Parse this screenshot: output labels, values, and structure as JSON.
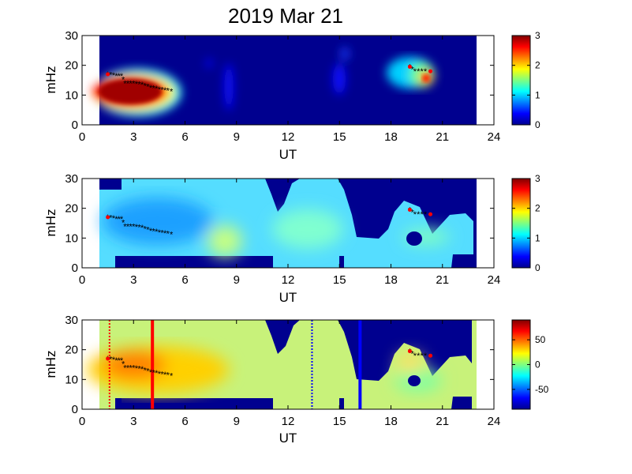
{
  "title": "2019 Mar 21",
  "chart_data": [
    {
      "type": "heatmap",
      "panel": "top",
      "xlabel": "UT",
      "ylabel": "mHz",
      "xlim": [
        0,
        24
      ],
      "ylim": [
        0,
        30
      ],
      "xticks": [
        0,
        3,
        6,
        9,
        12,
        15,
        18,
        21,
        24
      ],
      "yticks": [
        0,
        10,
        20,
        30
      ],
      "colorbar": {
        "range": [
          0,
          3
        ],
        "ticks": [
          0,
          1,
          2,
          3
        ],
        "colormap": "jet"
      },
      "data_extent_ut": [
        1.0,
        23.0
      ],
      "background_value": 0,
      "features": [
        {
          "name": "morning-peak",
          "ut_range": [
            1.0,
            6.0
          ],
          "freq_range": [
            7,
            19
          ],
          "peak_value": 3
        },
        {
          "name": "evening-peak",
          "ut_range": [
            18.0,
            21.0
          ],
          "freq_range": [
            10,
            24
          ],
          "peak_value": 2.6
        }
      ],
      "peak_track": [
        {
          "ut": 1.5,
          "freq": 17
        },
        {
          "ut": 2.0,
          "freq": 16.5
        },
        {
          "ut": 2.3,
          "freq": 16.5
        },
        {
          "ut": 2.5,
          "freq": 14
        },
        {
          "ut": 3.0,
          "freq": 14
        },
        {
          "ut": 3.5,
          "freq": 13.5
        },
        {
          "ut": 4.0,
          "freq": 12.5
        },
        {
          "ut": 4.5,
          "freq": 12
        },
        {
          "ut": 5.0,
          "freq": 11.5
        },
        {
          "ut": 5.4,
          "freq": 11
        },
        {
          "ut": 19.1,
          "freq": 19.5
        },
        {
          "ut": 19.4,
          "freq": 18
        },
        {
          "ut": 19.8,
          "freq": 18
        },
        {
          "ut": 20.2,
          "freq": 18
        }
      ],
      "marker_points": [
        {
          "ut": 1.5,
          "freq": 17
        },
        {
          "ut": 19.1,
          "freq": 19.5
        },
        {
          "ut": 20.3,
          "freq": 18
        }
      ]
    },
    {
      "type": "heatmap",
      "panel": "middle",
      "xlabel": "UT",
      "ylabel": "mHz",
      "xlim": [
        0,
        24
      ],
      "ylim": [
        0,
        30
      ],
      "xticks": [
        0,
        3,
        6,
        9,
        12,
        15,
        18,
        21,
        24
      ],
      "yticks": [
        0,
        10,
        20,
        30
      ],
      "colorbar": {
        "range": [
          0,
          3
        ],
        "ticks": [
          0,
          1,
          2,
          3
        ],
        "colormap": "jet"
      },
      "data_extent_ut": [
        1.0,
        23.0
      ],
      "background_value": 0,
      "typical_value": 1.1,
      "peak_track": [
        {
          "ut": 1.5,
          "freq": 17
        },
        {
          "ut": 2.0,
          "freq": 16.5
        },
        {
          "ut": 2.3,
          "freq": 16.5
        },
        {
          "ut": 2.5,
          "freq": 14
        },
        {
          "ut": 3.0,
          "freq": 14
        },
        {
          "ut": 3.5,
          "freq": 13.5
        },
        {
          "ut": 4.0,
          "freq": 12.5
        },
        {
          "ut": 4.5,
          "freq": 12
        },
        {
          "ut": 5.0,
          "freq": 11.5
        },
        {
          "ut": 5.4,
          "freq": 11
        },
        {
          "ut": 19.1,
          "freq": 19.5
        },
        {
          "ut": 19.4,
          "freq": 18
        },
        {
          "ut": 19.8,
          "freq": 18
        },
        {
          "ut": 20.2,
          "freq": 18
        }
      ],
      "marker_points": [
        {
          "ut": 1.5,
          "freq": 17
        },
        {
          "ut": 19.1,
          "freq": 19.5
        },
        {
          "ut": 20.3,
          "freq": 18
        }
      ]
    },
    {
      "type": "heatmap",
      "panel": "bottom",
      "xlabel": "UT",
      "ylabel": "mHz",
      "xlim": [
        0,
        24
      ],
      "ylim": [
        0,
        30
      ],
      "xticks": [
        0,
        3,
        6,
        9,
        12,
        15,
        18,
        21,
        24
      ],
      "yticks": [
        0,
        10,
        20,
        30
      ],
      "colorbar": {
        "range": [
          -90,
          90
        ],
        "ticks": [
          50,
          0,
          -50
        ],
        "colormap": "jet"
      },
      "data_extent_ut": [
        1.0,
        23.0
      ],
      "background_value": -90,
      "typical_value": 10,
      "peak_track": [
        {
          "ut": 1.5,
          "freq": 17
        },
        {
          "ut": 2.0,
          "freq": 16.5
        },
        {
          "ut": 2.3,
          "freq": 16.5
        },
        {
          "ut": 2.5,
          "freq": 14
        },
        {
          "ut": 3.0,
          "freq": 14
        },
        {
          "ut": 3.5,
          "freq": 13.5
        },
        {
          "ut": 4.0,
          "freq": 12.5
        },
        {
          "ut": 4.5,
          "freq": 12
        },
        {
          "ut": 5.0,
          "freq": 11.5
        },
        {
          "ut": 5.4,
          "freq": 11
        },
        {
          "ut": 19.1,
          "freq": 19.5
        },
        {
          "ut": 19.4,
          "freq": 18
        },
        {
          "ut": 19.8,
          "freq": 18
        },
        {
          "ut": 20.2,
          "freq": 18
        }
      ],
      "marker_points": [
        {
          "ut": 1.5,
          "freq": 17
        },
        {
          "ut": 19.1,
          "freq": 19.5
        },
        {
          "ut": 20.3,
          "freq": 18
        }
      ],
      "vertical_lines": [
        {
          "ut": 1.6,
          "color": "#ff0000",
          "style": "dotted"
        },
        {
          "ut": 4.1,
          "color": "#ff0000",
          "style": "solid"
        },
        {
          "ut": 13.4,
          "color": "#0000ff",
          "style": "dotted"
        },
        {
          "ut": 16.2,
          "color": "#0000ff",
          "style": "solid"
        }
      ]
    }
  ]
}
